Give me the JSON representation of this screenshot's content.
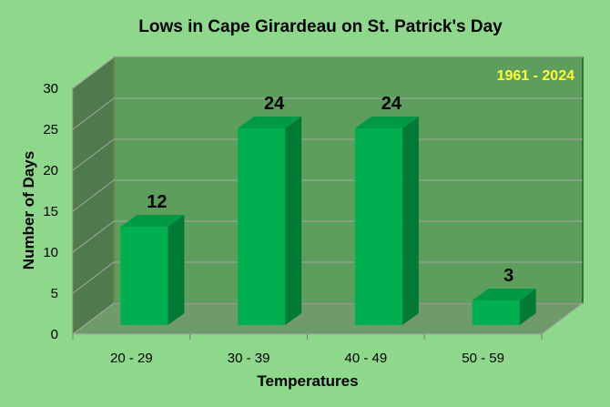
{
  "chart_data": {
    "type": "bar",
    "title": "Lows in Cape Girardeau on St. Patrick's Day",
    "annotation": "1961 - 2024",
    "xlabel": "Temperatures",
    "ylabel": "Number of Days",
    "categories": [
      "20 - 29",
      "30 - 39",
      "40 - 49",
      "50 - 59"
    ],
    "values": [
      12,
      24,
      24,
      3
    ],
    "data_labels": [
      "12",
      "24",
      "24",
      "3"
    ],
    "ylim": [
      0,
      30
    ],
    "yticks": [
      "0",
      "5",
      "10",
      "15",
      "20",
      "25",
      "30"
    ],
    "grid": true,
    "style": "3d",
    "colors": {
      "background": "#8ed88c",
      "plot_back_wall": "#5d9e5d",
      "plot_floor": "#6f9a6a",
      "plot_side_wall": "#4f7a4d",
      "grid": "#a8a8a8",
      "bar_front": "#00b050",
      "bar_top": "#009a44",
      "bar_side": "#007a35",
      "annotation": "#ffff33"
    }
  }
}
